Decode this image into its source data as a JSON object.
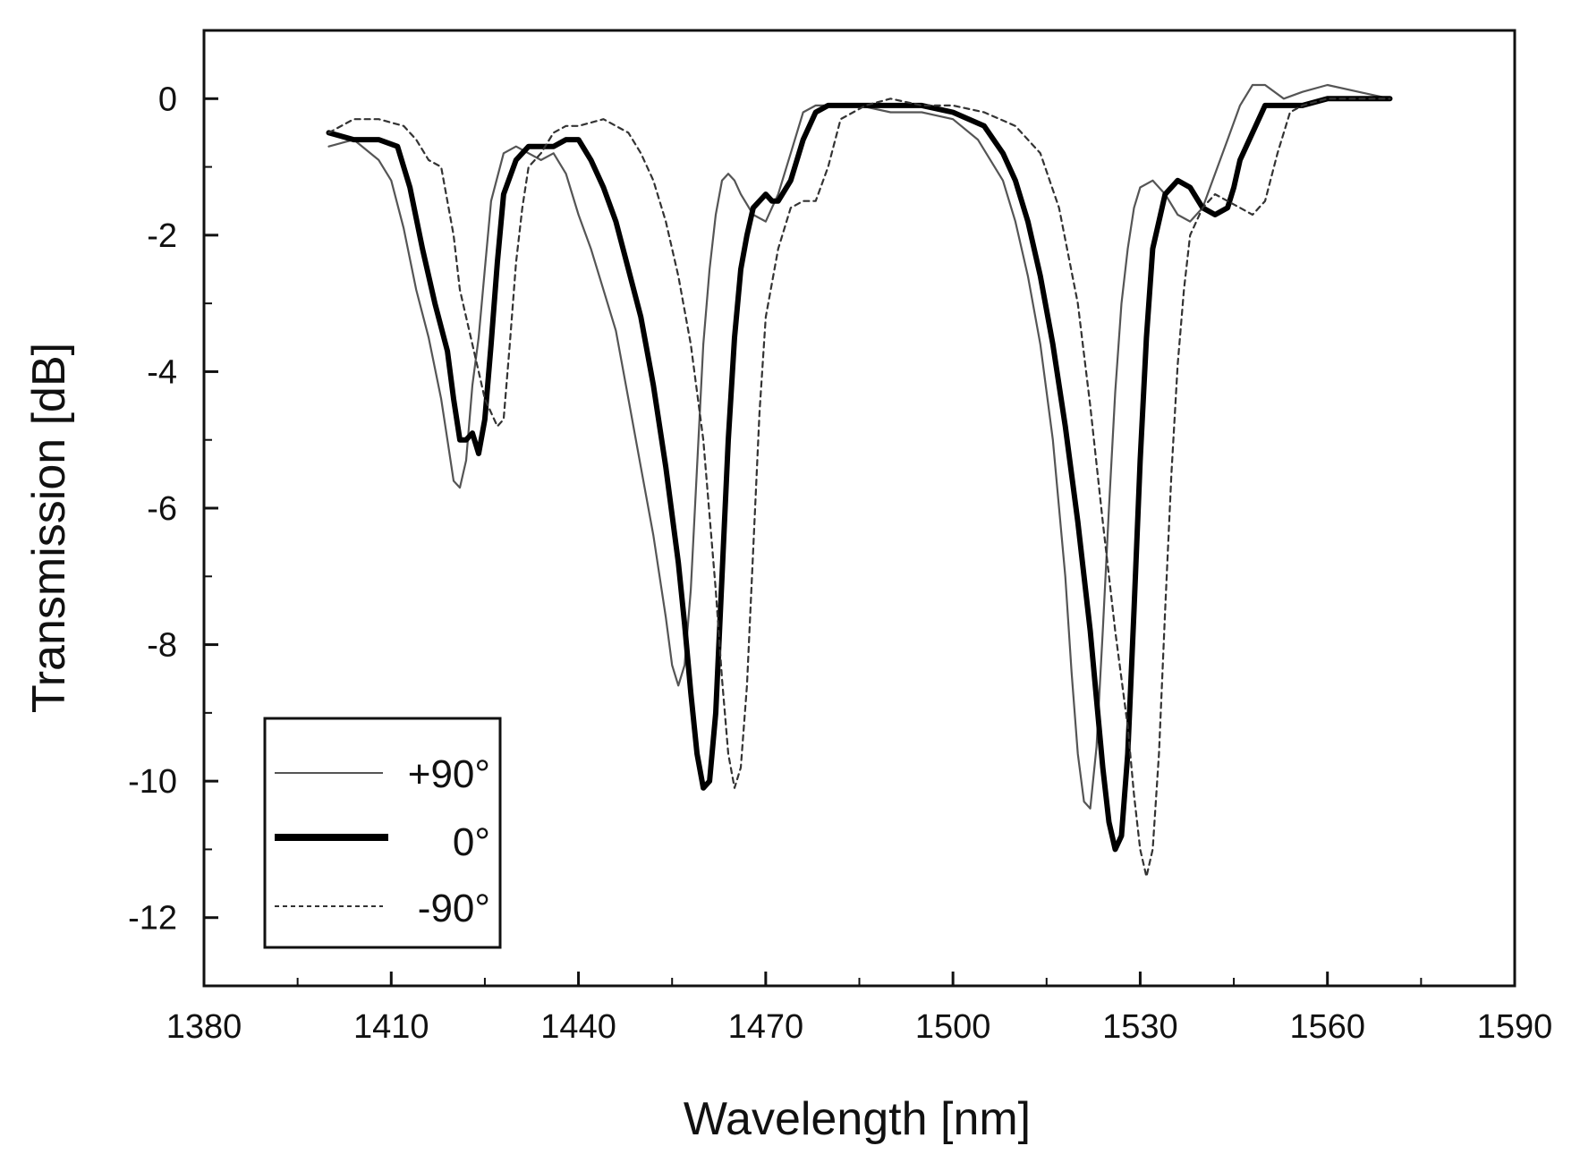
{
  "chart_data": {
    "type": "line",
    "title": "",
    "xlabel": "Wavelength [nm]",
    "ylabel": "Transmission [dB]",
    "xlim": [
      1380,
      1590
    ],
    "ylim": [
      -13,
      1
    ],
    "x_ticks": [
      1380,
      1410,
      1440,
      1470,
      1500,
      1530,
      1560,
      1590
    ],
    "x_tick_labels": [
      "1380",
      "1410",
      "1440",
      "1470",
      "1500",
      "1530",
      "1560",
      "1590"
    ],
    "y_ticks": [
      0,
      -2,
      -4,
      -6,
      -8,
      -10,
      -12
    ],
    "y_tick_labels": [
      "0",
      "-2",
      "-4",
      "-6",
      "-8",
      "-10",
      "-12"
    ],
    "grid": false,
    "legend_position": "bottom-left",
    "series": [
      {
        "name": "+90°",
        "style": "thin",
        "color": "#555555",
        "x": [
          1400,
          1404,
          1408,
          1410,
          1412,
          1414,
          1416,
          1418,
          1419,
          1420,
          1421,
          1422,
          1423,
          1424,
          1425,
          1426,
          1428,
          1430,
          1432,
          1434,
          1436,
          1438,
          1440,
          1442,
          1444,
          1446,
          1448,
          1450,
          1452,
          1454,
          1455,
          1456,
          1457,
          1458,
          1459,
          1460,
          1461,
          1462,
          1463,
          1464,
          1465,
          1466,
          1468,
          1470,
          1471,
          1472,
          1474,
          1476,
          1478,
          1480,
          1485,
          1490,
          1495,
          1500,
          1504,
          1508,
          1510,
          1512,
          1514,
          1516,
          1518,
          1519,
          1520,
          1521,
          1522,
          1523,
          1524,
          1525,
          1526,
          1527,
          1528,
          1529,
          1530,
          1532,
          1534,
          1536,
          1538,
          1540,
          1542,
          1544,
          1546,
          1548,
          1550,
          1553,
          1556,
          1560,
          1565,
          1570
        ],
        "y": [
          -0.7,
          -0.6,
          -0.9,
          -1.2,
          -1.9,
          -2.8,
          -3.5,
          -4.4,
          -5.0,
          -5.6,
          -5.7,
          -5.3,
          -4.2,
          -3.5,
          -2.5,
          -1.5,
          -0.8,
          -0.7,
          -0.8,
          -0.9,
          -0.8,
          -1.1,
          -1.7,
          -2.2,
          -2.8,
          -3.4,
          -4.4,
          -5.4,
          -6.4,
          -7.6,
          -8.3,
          -8.6,
          -8.3,
          -7.2,
          -5.4,
          -3.6,
          -2.5,
          -1.7,
          -1.2,
          -1.1,
          -1.2,
          -1.4,
          -1.7,
          -1.8,
          -1.6,
          -1.4,
          -0.8,
          -0.2,
          -0.1,
          -0.1,
          -0.1,
          -0.2,
          -0.2,
          -0.3,
          -0.6,
          -1.2,
          -1.8,
          -2.6,
          -3.6,
          -5.0,
          -7.0,
          -8.4,
          -9.6,
          -10.3,
          -10.4,
          -9.5,
          -7.8,
          -6.0,
          -4.3,
          -3.0,
          -2.2,
          -1.6,
          -1.3,
          -1.2,
          -1.4,
          -1.7,
          -1.8,
          -1.6,
          -1.1,
          -0.6,
          -0.1,
          0.2,
          0.2,
          0.0,
          0.1,
          0.2,
          0.1,
          0.0
        ]
      },
      {
        "name": "0°",
        "style": "thick",
        "color": "#000000",
        "x": [
          1400,
          1404,
          1408,
          1411,
          1413,
          1415,
          1417,
          1419,
          1420,
          1421,
          1422,
          1423,
          1424,
          1425,
          1426,
          1427,
          1428,
          1430,
          1432,
          1434,
          1436,
          1438,
          1440,
          1442,
          1444,
          1446,
          1448,
          1450,
          1452,
          1454,
          1456,
          1457,
          1458,
          1459,
          1460,
          1461,
          1462,
          1463,
          1464,
          1465,
          1466,
          1467,
          1468,
          1470,
          1471,
          1472,
          1474,
          1476,
          1478,
          1480,
          1485,
          1490,
          1495,
          1500,
          1505,
          1508,
          1510,
          1512,
          1514,
          1516,
          1518,
          1520,
          1522,
          1523,
          1524,
          1525,
          1526,
          1527,
          1528,
          1529,
          1530,
          1531,
          1532,
          1534,
          1536,
          1538,
          1540,
          1542,
          1544,
          1545,
          1546,
          1548,
          1550,
          1553,
          1556,
          1560,
          1565,
          1570
        ],
        "y": [
          -0.5,
          -0.6,
          -0.6,
          -0.7,
          -1.3,
          -2.2,
          -3.0,
          -3.7,
          -4.4,
          -5.0,
          -5.0,
          -4.9,
          -5.2,
          -4.7,
          -3.6,
          -2.4,
          -1.4,
          -0.9,
          -0.7,
          -0.7,
          -0.7,
          -0.6,
          -0.6,
          -0.9,
          -1.3,
          -1.8,
          -2.5,
          -3.2,
          -4.2,
          -5.4,
          -6.8,
          -7.7,
          -8.7,
          -9.6,
          -10.1,
          -10.0,
          -9.0,
          -7.0,
          -5.0,
          -3.5,
          -2.5,
          -2.0,
          -1.6,
          -1.4,
          -1.5,
          -1.5,
          -1.2,
          -0.6,
          -0.2,
          -0.1,
          -0.1,
          -0.1,
          -0.1,
          -0.2,
          -0.4,
          -0.8,
          -1.2,
          -1.8,
          -2.6,
          -3.6,
          -4.8,
          -6.2,
          -7.8,
          -8.8,
          -9.8,
          -10.6,
          -11.0,
          -10.8,
          -9.6,
          -7.5,
          -5.3,
          -3.5,
          -2.2,
          -1.4,
          -1.2,
          -1.3,
          -1.6,
          -1.7,
          -1.6,
          -1.3,
          -0.9,
          -0.5,
          -0.1,
          -0.1,
          -0.1,
          0.0,
          0.0,
          0.0
        ]
      },
      {
        "name": "-90°",
        "style": "dashed",
        "color": "#333333",
        "x": [
          1400,
          1404,
          1408,
          1412,
          1414,
          1416,
          1418,
          1420,
          1421,
          1422,
          1423,
          1424,
          1425,
          1426,
          1427,
          1428,
          1429,
          1430,
          1431,
          1432,
          1434,
          1436,
          1438,
          1440,
          1444,
          1448,
          1450,
          1452,
          1454,
          1456,
          1458,
          1460,
          1462,
          1463,
          1464,
          1465,
          1466,
          1467,
          1468,
          1469,
          1470,
          1472,
          1474,
          1476,
          1478,
          1480,
          1482,
          1486,
          1490,
          1495,
          1500,
          1505,
          1510,
          1514,
          1517,
          1520,
          1522,
          1524,
          1526,
          1528,
          1529,
          1530,
          1531,
          1532,
          1533,
          1534,
          1535,
          1536,
          1537,
          1538,
          1540,
          1542,
          1544,
          1546,
          1548,
          1550,
          1552,
          1554,
          1556,
          1560,
          1565,
          1570
        ],
        "y": [
          -0.5,
          -0.3,
          -0.3,
          -0.4,
          -0.6,
          -0.9,
          -1.0,
          -2.0,
          -2.8,
          -3.2,
          -3.6,
          -4.0,
          -4.4,
          -4.6,
          -4.8,
          -4.7,
          -3.6,
          -2.4,
          -1.6,
          -1.0,
          -0.8,
          -0.5,
          -0.4,
          -0.4,
          -0.3,
          -0.5,
          -0.8,
          -1.2,
          -1.8,
          -2.6,
          -3.6,
          -5.0,
          -7.2,
          -8.5,
          -9.6,
          -10.1,
          -9.8,
          -8.6,
          -6.6,
          -4.6,
          -3.2,
          -2.2,
          -1.6,
          -1.5,
          -1.5,
          -1.0,
          -0.3,
          -0.1,
          0.0,
          -0.1,
          -0.1,
          -0.2,
          -0.4,
          -0.8,
          -1.6,
          -3.0,
          -4.5,
          -6.2,
          -7.8,
          -9.2,
          -10.2,
          -11.0,
          -11.4,
          -11.0,
          -9.6,
          -7.5,
          -5.5,
          -3.9,
          -2.8,
          -2.0,
          -1.6,
          -1.4,
          -1.5,
          -1.6,
          -1.7,
          -1.5,
          -0.8,
          -0.2,
          -0.1,
          0.0,
          0.0,
          0.0
        ]
      }
    ],
    "legend": [
      {
        "label": "+90°",
        "style": "thin"
      },
      {
        "label": "0°",
        "style": "thick"
      },
      {
        "label": "-90°",
        "style": "dashed"
      }
    ]
  }
}
